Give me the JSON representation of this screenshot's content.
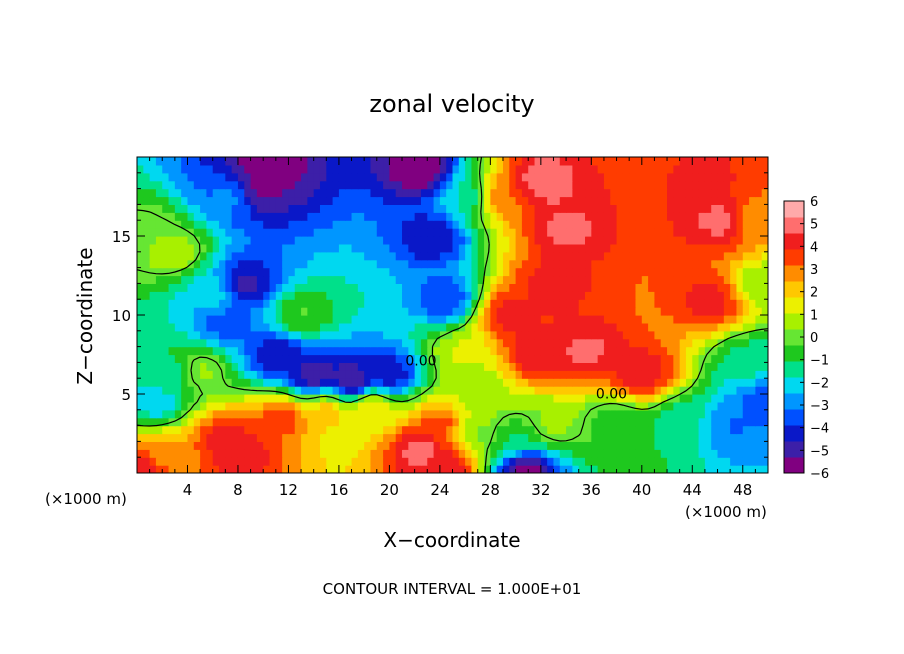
{
  "chart_data": {
    "type": "heatmap",
    "title": "zonal velocity",
    "xlabel": "X−coordinate",
    "ylabel": "Z−coordinate",
    "x_unit_left": "(×1000 m)",
    "x_unit_right": "(×1000 m)",
    "footer": "CONTOUR INTERVAL = 1.000E+01",
    "xlim": [
      0,
      50
    ],
    "ylim": [
      0,
      20
    ],
    "x_ticks": [
      4,
      8,
      12,
      16,
      20,
      24,
      28,
      32,
      36,
      40,
      44,
      48
    ],
    "x_tick_labels": [
      "4",
      "8",
      "12",
      "16",
      "20",
      "24",
      "28",
      "32",
      "36",
      "40",
      "44",
      "48"
    ],
    "y_ticks": [
      5,
      10,
      15
    ],
    "y_tick_labels": [
      "5",
      "10",
      "15"
    ],
    "colorbar": {
      "min": -6,
      "max": 6,
      "tick_values": [
        6,
        5,
        4,
        3,
        2,
        1,
        0,
        -1,
        -2,
        -3,
        -4,
        -5,
        -6
      ],
      "tick_labels": [
        "6",
        "5",
        "4",
        "3",
        "2",
        "1",
        "0",
        "−1",
        "−2",
        "−3",
        "−4",
        "−5",
        "−6"
      ],
      "colors": [
        "#800080",
        "#3c1fa8",
        "#0a18c8",
        "#0050ff",
        "#0096ff",
        "#00d8f0",
        "#00e08a",
        "#1ec81e",
        "#66e633",
        "#a8f000",
        "#ecf000",
        "#ffc800",
        "#ff8c00",
        "#ff3c00",
        "#f01e1e",
        "#ff6e6e",
        "#ffaaaa"
      ]
    },
    "contour_labels": [
      {
        "text": "0.00",
        "x": 22.5,
        "z": 6.8
      },
      {
        "text": "0.00",
        "x": 37.6,
        "z": 4.7
      }
    ],
    "field_centers": [
      {
        "x": 0.5,
        "z": 15,
        "v": 0.3
      },
      {
        "x": 3,
        "z": 14,
        "v": 0.8
      },
      {
        "x": 1.5,
        "z": 4.5,
        "v": -2.2
      },
      {
        "x": 3,
        "z": 6.5,
        "v": -1.3
      },
      {
        "x": 8.5,
        "z": 12,
        "v": -4.8
      },
      {
        "x": 11,
        "z": 7.5,
        "v": -4.6
      },
      {
        "x": 14,
        "z": 6.2,
        "v": -5.2
      },
      {
        "x": 17,
        "z": 5.8,
        "v": -5.5
      },
      {
        "x": 20,
        "z": 6.3,
        "v": -4.5
      },
      {
        "x": 7.5,
        "z": 17.5,
        "v": -3
      },
      {
        "x": 9.5,
        "z": 18,
        "v": -5.5
      },
      {
        "x": 10.3,
        "z": 19.4,
        "v": -6
      },
      {
        "x": 23.5,
        "z": 15,
        "v": -4.6
      },
      {
        "x": 24.5,
        "z": 11,
        "v": -3.8
      },
      {
        "x": 22.5,
        "z": 19.2,
        "v": -6
      },
      {
        "x": 26,
        "z": 17.5,
        "v": -1.8
      },
      {
        "x": 7,
        "z": 9.5,
        "v": -3.5
      },
      {
        "x": 6,
        "z": 11.5,
        "v": -2
      },
      {
        "x": 26,
        "z": 7.5,
        "v": 1.2
      },
      {
        "x": 27,
        "z": 5.5,
        "v": 0.5
      },
      {
        "x": 29.5,
        "z": 10,
        "v": 4.3
      },
      {
        "x": 29,
        "z": 17.5,
        "v": 3.2
      },
      {
        "x": 32,
        "z": 18.5,
        "v": 5.2
      },
      {
        "x": 34,
        "z": 15.5,
        "v": 4.8
      },
      {
        "x": 33,
        "z": 12,
        "v": 4.3
      },
      {
        "x": 35.5,
        "z": 7.8,
        "v": 4.8
      },
      {
        "x": 31.5,
        "z": 7.5,
        "v": 4.5
      },
      {
        "x": 40,
        "z": 6.3,
        "v": 4.5
      },
      {
        "x": 46.5,
        "z": 16,
        "v": 5
      },
      {
        "x": 45.5,
        "z": 11,
        "v": 4.2
      },
      {
        "x": 45,
        "z": 18.5,
        "v": 4
      },
      {
        "x": 48.5,
        "z": 16,
        "v": 2.5
      },
      {
        "x": 49.5,
        "z": 12,
        "v": 0.5
      },
      {
        "x": 48.5,
        "z": 7,
        "v": -1.5
      },
      {
        "x": 49.5,
        "z": 4.5,
        "v": -3.5
      },
      {
        "x": 47.5,
        "z": 3,
        "v": -3.2
      },
      {
        "x": 43,
        "z": 3.2,
        "v": -1.5
      },
      {
        "x": 38,
        "z": 3.2,
        "v": -0.8
      },
      {
        "x": 33,
        "z": 3,
        "v": 0.5
      },
      {
        "x": 30,
        "z": 2,
        "v": -1.2
      },
      {
        "x": 30.8,
        "z": 0.3,
        "v": -6
      },
      {
        "x": 24,
        "z": 3,
        "v": 3.5
      },
      {
        "x": 22.5,
        "z": 1.5,
        "v": 5
      },
      {
        "x": 24.5,
        "z": 0.5,
        "v": 4.5
      },
      {
        "x": 27,
        "z": 2.5,
        "v": 0.3
      },
      {
        "x": 7,
        "z": 2.2,
        "v": 4.2
      },
      {
        "x": 8.2,
        "z": 1.2,
        "v": 4.5
      },
      {
        "x": 11.5,
        "z": 3.5,
        "v": 3.6
      },
      {
        "x": 15,
        "z": 4,
        "v": 2.2
      },
      {
        "x": 18.5,
        "z": 4.2,
        "v": 1.8
      },
      {
        "x": 2.5,
        "z": 1.2,
        "v": 2.5
      },
      {
        "x": 0.5,
        "z": 0.3,
        "v": 4.5
      },
      {
        "x": 5,
        "z": 6.5,
        "v": 0.5
      },
      {
        "x": 13,
        "z": 10,
        "v": -0.3
      }
    ]
  }
}
